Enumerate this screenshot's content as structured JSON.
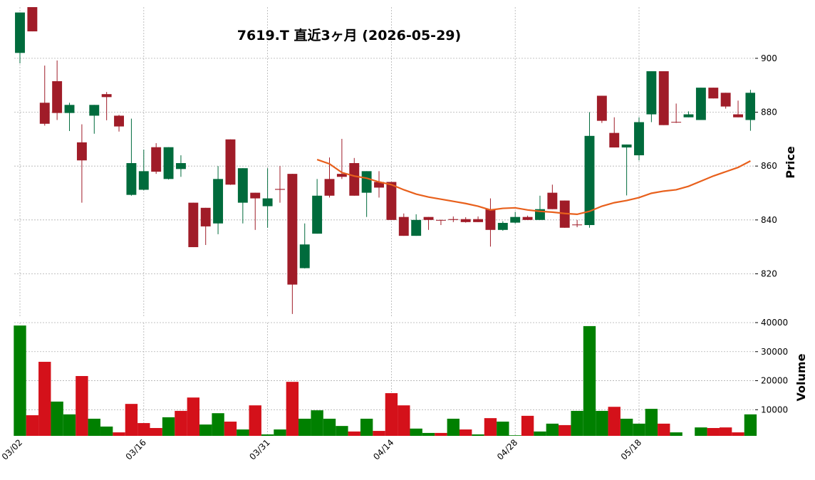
{
  "chart_data": {
    "type": "candlestick",
    "title": "7619.T  直近3ヶ月  (2026-05-29)",
    "y_label": "Price",
    "volume_label": "Volume",
    "categories": [
      "03/02",
      null,
      null,
      null,
      null,
      null,
      null,
      null,
      null,
      null,
      "03/16",
      null,
      null,
      null,
      null,
      null,
      null,
      null,
      null,
      null,
      "03/31",
      null,
      null,
      null,
      null,
      null,
      null,
      null,
      null,
      null,
      "04/14",
      null,
      null,
      null,
      null,
      null,
      null,
      null,
      null,
      null,
      "04/28",
      null,
      null,
      null,
      null,
      null,
      null,
      null,
      null,
      null,
      "05/18",
      null,
      null,
      null,
      null,
      null,
      null,
      null,
      null,
      null
    ],
    "open": [
      902,
      920,
      883.5,
      891.5,
      879.7,
      868.8,
      878.7,
      886.7,
      878.7,
      849.3,
      851.2,
      867,
      855.2,
      858.9,
      846.4,
      844.5,
      838.7,
      869.9,
      846.4,
      850.1,
      845.1,
      851.5,
      857.1,
      822.1,
      834.9,
      855.2,
      857.1,
      861.1,
      850.1,
      854.1,
      854.1,
      841.1,
      834.1,
      841.1,
      840,
      840.3,
      840.3,
      840.3,
      844,
      836.3,
      839,
      841.1,
      840,
      850.1,
      847.2,
      838.3,
      838.1,
      886.1,
      872.3,
      866.9,
      864,
      879.2,
      895.2,
      876.4,
      878.1,
      877.1,
      889.1,
      887.2,
      879.2,
      877.1
    ],
    "high": [
      917,
      921,
      897.3,
      899.2,
      883.5,
      875.5,
      882.7,
      887.5,
      879,
      877.6,
      866.1,
      868.5,
      867,
      864,
      846.4,
      844.5,
      860,
      869.9,
      859.2,
      850.1,
      859.2,
      860,
      857.1,
      838.7,
      855.2,
      863.2,
      870.1,
      863,
      858.1,
      858.1,
      854.1,
      842.4,
      842.1,
      841.1,
      840.1,
      841.3,
      841,
      841.3,
      848,
      839.5,
      843,
      841.6,
      849,
      853.1,
      847.2,
      840,
      880,
      886.1,
      878.1,
      868,
      878.1,
      895.2,
      895.2,
      883.2,
      880.3,
      889.1,
      889.1,
      887.2,
      884.3,
      888.3
    ],
    "low": [
      898.1,
      910,
      875,
      877.1,
      873,
      846.4,
      872,
      877,
      872.8,
      849,
      851,
      857.1,
      855,
      856,
      829.9,
      830.7,
      834.7,
      853,
      838.7,
      836.3,
      837.1,
      846.4,
      805.1,
      822,
      834.9,
      848.3,
      855.2,
      849,
      841.1,
      848.3,
      840,
      834.1,
      834.1,
      836.3,
      838.1,
      839.2,
      839,
      839.2,
      830.1,
      836,
      838.7,
      840,
      840,
      844,
      837.1,
      837.3,
      837.1,
      876,
      866.9,
      849.1,
      862.1,
      876.3,
      875.2,
      876,
      878.1,
      877.1,
      885.1,
      881.3,
      878.1,
      873.1
    ],
    "close": [
      917,
      910,
      875.7,
      879.7,
      882.7,
      862.1,
      882.7,
      885.6,
      874.7,
      861.1,
      858.1,
      857.9,
      867,
      861.1,
      829.9,
      837.6,
      855.2,
      853.1,
      859.2,
      848,
      848,
      851.2,
      816,
      830.9,
      849,
      849,
      856,
      849,
      858.1,
      852,
      840,
      834.1,
      840,
      840,
      839.8,
      840,
      839.2,
      839.2,
      836.3,
      838.9,
      841.1,
      840,
      844,
      844,
      837.1,
      838.1,
      871.2,
      876.8,
      866.9,
      868,
      876.3,
      895.2,
      875.2,
      876.2,
      879.2,
      889.1,
      885.1,
      882.1,
      878.1,
      887.2
    ],
    "volume": [
      39000,
      8100,
      26500,
      12800,
      8400,
      21600,
      6900,
      4200,
      2200,
      12000,
      5400,
      3700,
      7400,
      9600,
      14200,
      4900,
      8800,
      5900,
      3200,
      11500,
      1500,
      3200,
      19600,
      6900,
      9800,
      6900,
      4400,
      2500,
      6900,
      2700,
      15700,
      11500,
      3500,
      2000,
      2000,
      6900,
      3200,
      1500,
      7100,
      5900,
      1200,
      7900,
      2500,
      5200,
      4700,
      9600,
      38800,
      9600,
      11000,
      6900,
      5200,
      10300,
      5200,
      2200,
      1000,
      3900,
      3700,
      3900,
      2200,
      8400
    ],
    "ma": {
      "color": "#e8601c",
      "values": [
        null,
        null,
        null,
        null,
        null,
        null,
        null,
        null,
        null,
        null,
        null,
        null,
        null,
        null,
        null,
        null,
        null,
        null,
        null,
        null,
        null,
        null,
        null,
        null,
        862.4,
        860.8,
        857.6,
        856.3,
        855.5,
        854.1,
        853.1,
        851.2,
        849.6,
        848.5,
        847.7,
        846.9,
        846.1,
        845.1,
        843.7,
        844.3,
        844.5,
        843.7,
        843.2,
        842.9,
        842.4,
        842.1,
        843.2,
        845.1,
        846.4,
        847.2,
        848.3,
        849.9,
        850.7,
        851.2,
        852.5,
        854.4,
        856.3,
        857.9,
        859.5,
        861.9
      ]
    },
    "up_color": "#006b3c",
    "down_color": "#a01c28",
    "volume_up_color": "#008000",
    "volume_down_color": "#d4111a",
    "ylim": [
      804,
      919
    ],
    "yticks": [
      820,
      840,
      860,
      880,
      900
    ],
    "volume_ylim": [
      1000,
      40000
    ],
    "volume_yticks": [
      10000,
      20000,
      30000,
      40000
    ],
    "grid": true
  }
}
